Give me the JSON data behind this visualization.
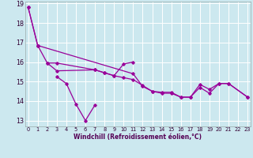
{
  "xlabel": "Windchill (Refroidissement éolien,°C)",
  "bg_color": "#cce8ef",
  "grid_color": "#ffffff",
  "line_color": "#990099",
  "xlim": [
    -0.3,
    23.3
  ],
  "ylim": [
    12.7,
    19.1
  ],
  "yticks": [
    13,
    14,
    15,
    16,
    17,
    18,
    19
  ],
  "xticks": [
    0,
    1,
    2,
    3,
    4,
    5,
    6,
    7,
    8,
    9,
    10,
    11,
    12,
    13,
    14,
    15,
    16,
    17,
    18,
    19,
    20,
    21,
    22,
    23
  ],
  "curves": [
    {
      "x": [
        0,
        1
      ],
      "y": [
        18.8,
        16.85
      ]
    },
    {
      "x": [
        1,
        2,
        3,
        7,
        8,
        9,
        10,
        11,
        12,
        13,
        14,
        15,
        16,
        17,
        18,
        19,
        20,
        21,
        23
      ],
      "y": [
        16.85,
        15.95,
        15.55,
        15.6,
        15.45,
        15.3,
        15.2,
        15.1,
        14.8,
        14.5,
        14.4,
        14.4,
        14.2,
        14.2,
        14.7,
        14.4,
        14.9,
        14.9,
        14.2
      ]
    },
    {
      "x": [
        2,
        3,
        7,
        8,
        9,
        10,
        11
      ],
      "y": [
        15.95,
        15.95,
        15.6,
        15.45,
        15.3,
        15.9,
        16.0
      ]
    },
    {
      "x": [
        3,
        4,
        5,
        6,
        7
      ],
      "y": [
        15.25,
        14.9,
        13.85,
        13.0,
        13.8
      ]
    },
    {
      "x": [
        0,
        1,
        11,
        12,
        13,
        14,
        15,
        16,
        17,
        18,
        19,
        20,
        21,
        23
      ],
      "y": [
        18.8,
        16.85,
        15.4,
        14.75,
        14.5,
        14.45,
        14.45,
        14.2,
        14.2,
        14.85,
        14.6,
        14.9,
        14.9,
        14.2
      ]
    }
  ]
}
